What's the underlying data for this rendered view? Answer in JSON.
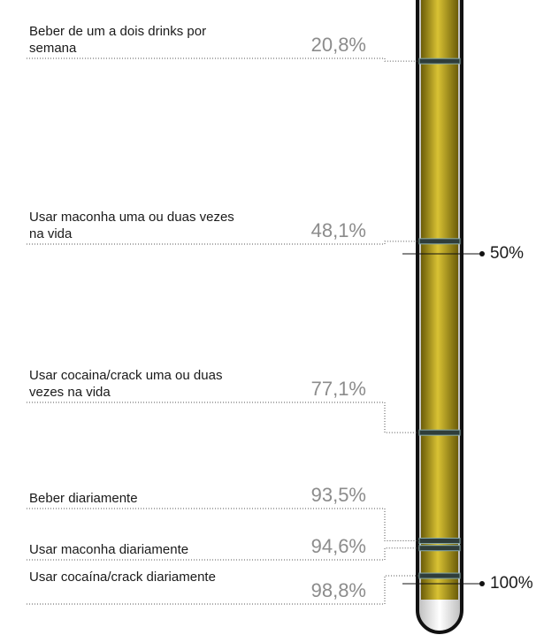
{
  "chart_data": {
    "type": "tube",
    "categories": [
      "Beber de um a dois drinks por semana",
      "Usar maconha uma ou duas vezes na vida",
      "Usar cocaina/crack uma ou duas vezes na vida",
      "Beber diariamente",
      "Usar maconha diariamente",
      "Usar cocaína/crack diariamente"
    ],
    "values": [
      20.8,
      48.1,
      77.1,
      93.5,
      94.6,
      98.8
    ],
    "value_labels": [
      "20,8%",
      "48,1%",
      "77,1%",
      "93,5%",
      "94,6%",
      "98,8%"
    ],
    "ylim": [
      0,
      100
    ],
    "yticks": [
      {
        "value": 50,
        "label": "50%"
      },
      {
        "value": 100,
        "label": "100%"
      }
    ],
    "color": "#c9b020"
  }
}
